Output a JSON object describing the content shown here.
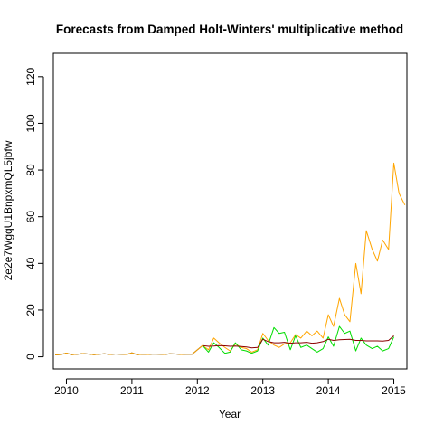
{
  "chart_data": {
    "type": "line",
    "title": "Forecasts from Damped Holt-Winters' multiplicative method",
    "xlabel": "Year",
    "ylabel": "2e2e7WgqU1BnpxmQL5jbfw",
    "xlim": [
      2009.8,
      2015.2
    ],
    "ylim": [
      0,
      130
    ],
    "x_ticks": [
      2010,
      2011,
      2012,
      2013,
      2014,
      2015
    ],
    "y_ticks": [
      0,
      20,
      40,
      60,
      80,
      100,
      120
    ],
    "grid": false,
    "legend": "none",
    "series": [
      {
        "color": "#000000",
        "style": "solid",
        "points": [
          [
            2009.83,
            0.8
          ],
          [
            2009.92,
            1.0
          ],
          [
            2010.0,
            1.6
          ],
          [
            2010.08,
            0.9
          ],
          [
            2010.17,
            1.1
          ],
          [
            2010.25,
            1.4
          ],
          [
            2010.33,
            1.2
          ],
          [
            2010.42,
            0.9
          ],
          [
            2010.5,
            1.1
          ],
          [
            2010.58,
            1.3
          ],
          [
            2010.67,
            1.0
          ],
          [
            2010.75,
            1.2
          ],
          [
            2010.83,
            1.1
          ],
          [
            2010.92,
            1.0
          ],
          [
            2011.0,
            1.7
          ],
          [
            2011.08,
            0.9
          ],
          [
            2011.17,
            1.1
          ],
          [
            2011.25,
            1.0
          ],
          [
            2011.33,
            1.2
          ],
          [
            2011.42,
            1.1
          ],
          [
            2011.5,
            1.0
          ],
          [
            2011.58,
            1.3
          ],
          [
            2011.67,
            1.2
          ],
          [
            2011.75,
            1.0
          ],
          [
            2011.83,
            1.1
          ],
          [
            2011.92,
            1.1
          ],
          [
            2012.0,
            3.0
          ],
          [
            2012.08,
            4.8
          ]
        ]
      },
      {
        "color": "#ffa500",
        "style": "solid",
        "points": [
          [
            2009.83,
            0.8
          ],
          [
            2009.92,
            1.0
          ],
          [
            2010.0,
            1.6
          ],
          [
            2010.08,
            0.9
          ],
          [
            2010.17,
            1.1
          ],
          [
            2010.25,
            1.4
          ],
          [
            2010.33,
            1.2
          ],
          [
            2010.42,
            0.9
          ],
          [
            2010.5,
            1.1
          ],
          [
            2010.58,
            1.3
          ],
          [
            2010.67,
            1.0
          ],
          [
            2010.75,
            1.2
          ],
          [
            2010.83,
            1.1
          ],
          [
            2010.92,
            1.0
          ],
          [
            2011.0,
            1.7
          ],
          [
            2011.08,
            0.9
          ],
          [
            2011.17,
            1.1
          ],
          [
            2011.25,
            1.0
          ],
          [
            2011.33,
            1.2
          ],
          [
            2011.42,
            1.1
          ],
          [
            2011.5,
            1.0
          ],
          [
            2011.58,
            1.3
          ],
          [
            2011.67,
            1.2
          ],
          [
            2011.75,
            1.0
          ],
          [
            2011.83,
            1.1
          ],
          [
            2011.92,
            1.1
          ],
          [
            2012.0,
            3.0
          ],
          [
            2012.08,
            4.8
          ],
          [
            2012.17,
            3.0
          ],
          [
            2012.25,
            8.0
          ],
          [
            2012.33,
            6.0
          ],
          [
            2012.42,
            4.0
          ],
          [
            2012.5,
            2.5
          ],
          [
            2012.58,
            5.5
          ],
          [
            2012.67,
            4.0
          ],
          [
            2012.75,
            3.5
          ],
          [
            2012.83,
            2.0
          ],
          [
            2012.92,
            3.0
          ],
          [
            2013.0,
            10.0
          ],
          [
            2013.08,
            7.0
          ],
          [
            2013.17,
            5.0
          ],
          [
            2013.25,
            4.0
          ],
          [
            2013.33,
            5.5
          ],
          [
            2013.42,
            6.0
          ],
          [
            2013.5,
            9.5
          ],
          [
            2013.58,
            8.0
          ],
          [
            2013.67,
            11.0
          ],
          [
            2013.75,
            9.0
          ],
          [
            2013.83,
            11.0
          ],
          [
            2013.92,
            8.0
          ],
          [
            2014.0,
            18.0
          ],
          [
            2014.08,
            13.0
          ],
          [
            2014.17,
            25.0
          ],
          [
            2014.25,
            18.0
          ],
          [
            2014.33,
            15.0
          ],
          [
            2014.42,
            40.0
          ],
          [
            2014.5,
            27.0
          ],
          [
            2014.58,
            54.0
          ],
          [
            2014.67,
            46.0
          ],
          [
            2014.75,
            41.0
          ],
          [
            2014.83,
            50.0
          ],
          [
            2014.92,
            46.0
          ],
          [
            2015.0,
            83.0
          ],
          [
            2015.08,
            70.0
          ],
          [
            2015.17,
            65.0
          ]
        ]
      },
      {
        "color": "#00dd00",
        "style": "solid",
        "points": [
          [
            2012.08,
            4.8
          ],
          [
            2012.17,
            2.0
          ],
          [
            2012.25,
            6.0
          ],
          [
            2012.33,
            4.0
          ],
          [
            2012.42,
            1.5
          ],
          [
            2012.5,
            2.0
          ],
          [
            2012.58,
            6.0
          ],
          [
            2012.67,
            3.0
          ],
          [
            2012.75,
            2.5
          ],
          [
            2012.83,
            1.5
          ],
          [
            2012.92,
            2.5
          ],
          [
            2013.0,
            8.0
          ],
          [
            2013.08,
            5.0
          ],
          [
            2013.17,
            12.5
          ],
          [
            2013.25,
            10.0
          ],
          [
            2013.33,
            10.5
          ],
          [
            2013.42,
            3.0
          ],
          [
            2013.5,
            9.0
          ],
          [
            2013.58,
            4.0
          ],
          [
            2013.67,
            5.0
          ],
          [
            2013.75,
            3.5
          ],
          [
            2013.83,
            2.0
          ],
          [
            2013.92,
            3.5
          ],
          [
            2014.0,
            8.5
          ],
          [
            2014.08,
            4.5
          ],
          [
            2014.17,
            13.0
          ],
          [
            2014.25,
            10.0
          ],
          [
            2014.33,
            11.0
          ],
          [
            2014.42,
            2.5
          ],
          [
            2014.5,
            8.0
          ],
          [
            2014.58,
            5.0
          ],
          [
            2014.67,
            3.5
          ],
          [
            2014.75,
            4.5
          ],
          [
            2014.83,
            2.5
          ],
          [
            2014.92,
            3.5
          ],
          [
            2015.0,
            8.5
          ]
        ]
      },
      {
        "color": "#8b0000",
        "style": "solid",
        "points": [
          [
            2012.08,
            4.8
          ],
          [
            2012.17,
            4.5
          ],
          [
            2012.25,
            4.6
          ],
          [
            2012.33,
            4.8
          ],
          [
            2012.42,
            4.7
          ],
          [
            2012.5,
            4.5
          ],
          [
            2012.58,
            4.6
          ],
          [
            2012.67,
            4.4
          ],
          [
            2012.75,
            4.2
          ],
          [
            2012.83,
            3.8
          ],
          [
            2012.92,
            4.0
          ],
          [
            2013.0,
            7.5
          ],
          [
            2013.08,
            6.5
          ],
          [
            2013.17,
            6.0
          ],
          [
            2013.25,
            6.0
          ],
          [
            2013.33,
            6.2
          ],
          [
            2013.42,
            5.8
          ],
          [
            2013.5,
            6.0
          ],
          [
            2013.58,
            6.0
          ],
          [
            2013.67,
            6.2
          ],
          [
            2013.75,
            5.8
          ],
          [
            2013.83,
            6.0
          ],
          [
            2013.92,
            6.5
          ],
          [
            2014.0,
            7.5
          ],
          [
            2014.08,
            7.0
          ],
          [
            2014.17,
            7.3
          ],
          [
            2014.25,
            7.4
          ],
          [
            2014.33,
            7.5
          ],
          [
            2014.42,
            7.0
          ],
          [
            2014.5,
            7.0
          ],
          [
            2014.58,
            6.8
          ],
          [
            2014.67,
            6.8
          ],
          [
            2014.75,
            6.8
          ],
          [
            2014.83,
            6.7
          ],
          [
            2014.92,
            7.0
          ],
          [
            2015.0,
            9.0
          ]
        ]
      }
    ]
  }
}
